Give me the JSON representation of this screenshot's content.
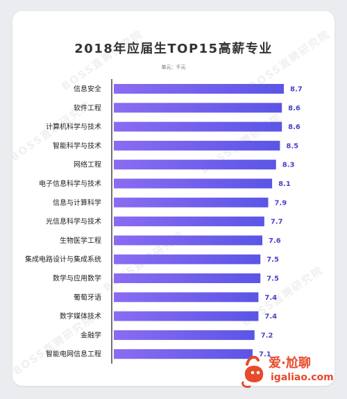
{
  "watermark": "BOSS直聘研究院",
  "logo": {
    "text": "爱·尬聊",
    "url": "igaliao.com"
  },
  "chart_data": {
    "type": "bar",
    "orientation": "horizontal",
    "title": "2018年应届生TOP15高薪专业",
    "unit": "单元：千元",
    "categories": [
      "信息安全",
      "软件工程",
      "计算机科学与技术",
      "智能科学与技术",
      "网络工程",
      "电子信息科学与技术",
      "信息与计算科学",
      "光信息科学与技术",
      "生物医学工程",
      "集成电路设计与集成系统",
      "数学与应用数学",
      "葡萄牙语",
      "数字媒体技术",
      "金融学",
      "智能电网信息工程"
    ],
    "values": [
      8.7,
      8.6,
      8.6,
      8.5,
      8.3,
      8.1,
      7.9,
      7.7,
      7.6,
      7.5,
      7.5,
      7.4,
      7.4,
      7.2,
      7.1
    ],
    "value_labels": [
      "8.7",
      "8.6",
      "8.6",
      "8.5",
      "8.3",
      "8.1",
      "7.9",
      "7.7",
      "7.6",
      "7.5",
      "7.5",
      "7.4",
      "7.4",
      "7.2",
      "7.1"
    ],
    "xlim": [
      0,
      8.7
    ],
    "grid": false,
    "colors": {
      "bar_start": "#8a6cf2",
      "bar_end": "#5b55e6",
      "label": "#4a42c8",
      "axis": "#222222"
    }
  }
}
